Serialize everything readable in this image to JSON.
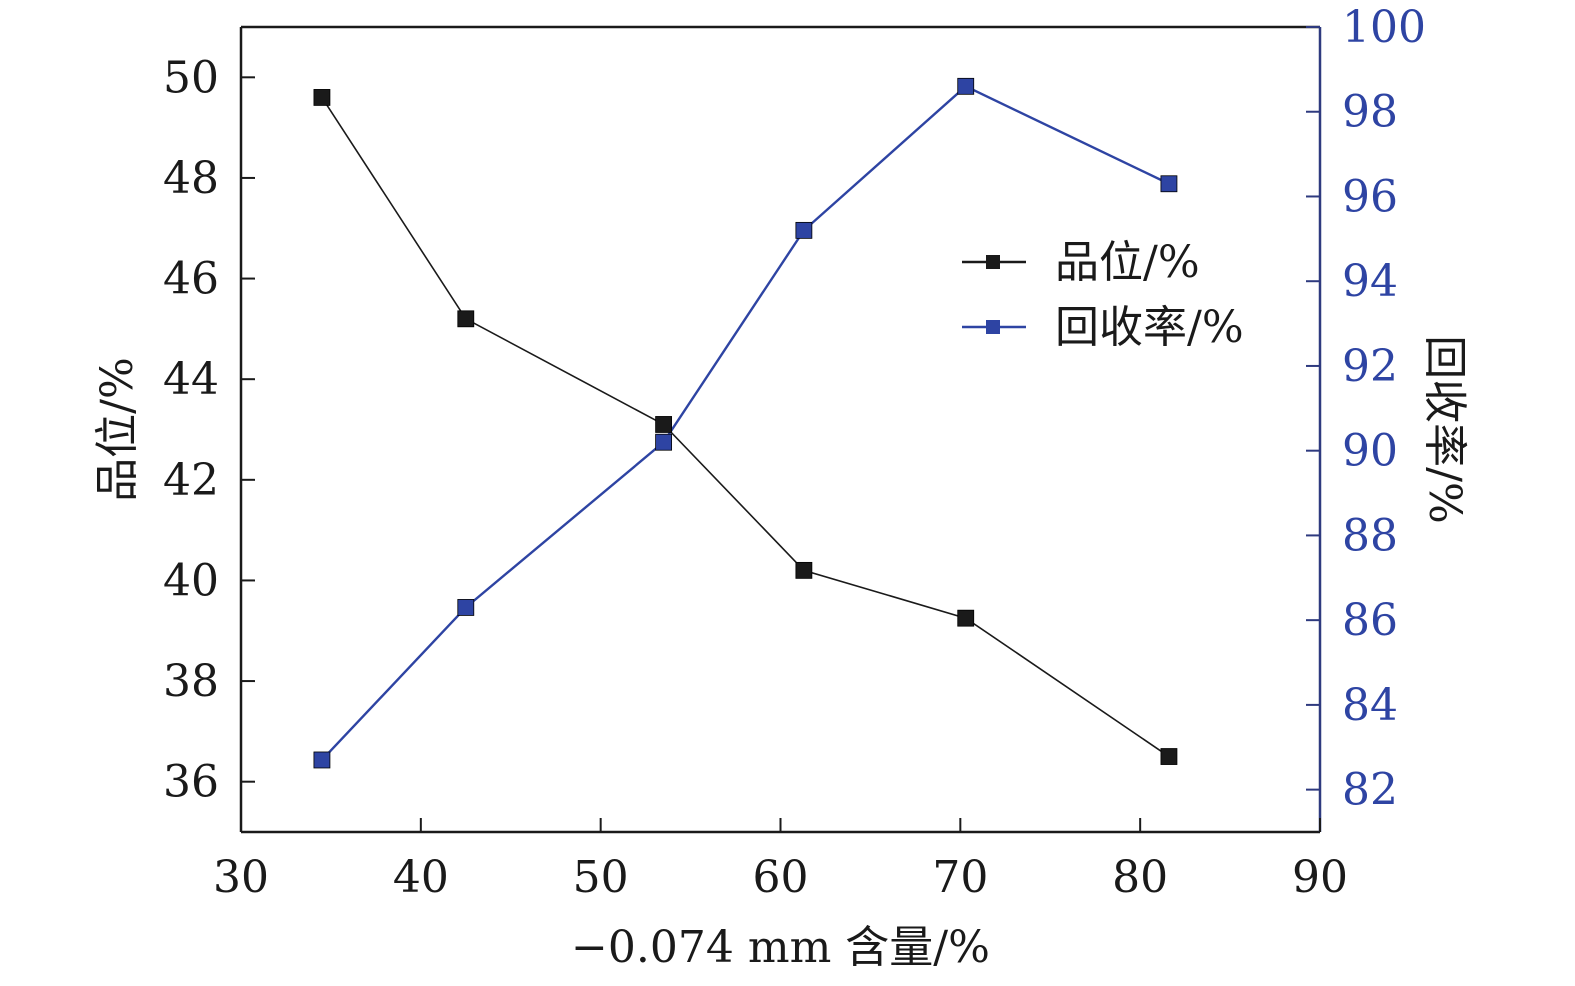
{
  "chart_data": {
    "type": "line",
    "xlabel": "−0.074 mm 含量/%",
    "ylabel_left": "品位/%",
    "ylabel_right": "回收率/%",
    "xlim": [
      30,
      90
    ],
    "ylim_left": [
      35,
      51
    ],
    "ylim_right": [
      81,
      100
    ],
    "x_ticks": [
      30,
      40,
      50,
      60,
      70,
      80,
      90
    ],
    "y_left_ticks": [
      36,
      38,
      40,
      42,
      44,
      46,
      48,
      50
    ],
    "y_right_ticks": [
      82,
      84,
      86,
      88,
      90,
      92,
      94,
      96,
      98,
      100
    ],
    "grid": false,
    "legend_position": "upper-right",
    "colors": {
      "black": "#1a1a1a",
      "blue": "#2e44a3",
      "axis_right": "#2e3a7f"
    },
    "series": [
      {
        "name": "品位/%",
        "axis": "left",
        "color": "#1a1a1a",
        "x": [
          34.5,
          42.5,
          53.5,
          61.3,
          70.3,
          81.6
        ],
        "y": [
          49.6,
          45.2,
          43.1,
          40.2,
          39.25,
          36.5
        ]
      },
      {
        "name": "回收率/%",
        "axis": "right",
        "color": "#2e44a3",
        "x": [
          34.5,
          42.5,
          53.5,
          61.3,
          70.3,
          81.6
        ],
        "y": [
          82.7,
          86.3,
          90.2,
          95.2,
          98.6,
          96.3
        ]
      }
    ]
  }
}
